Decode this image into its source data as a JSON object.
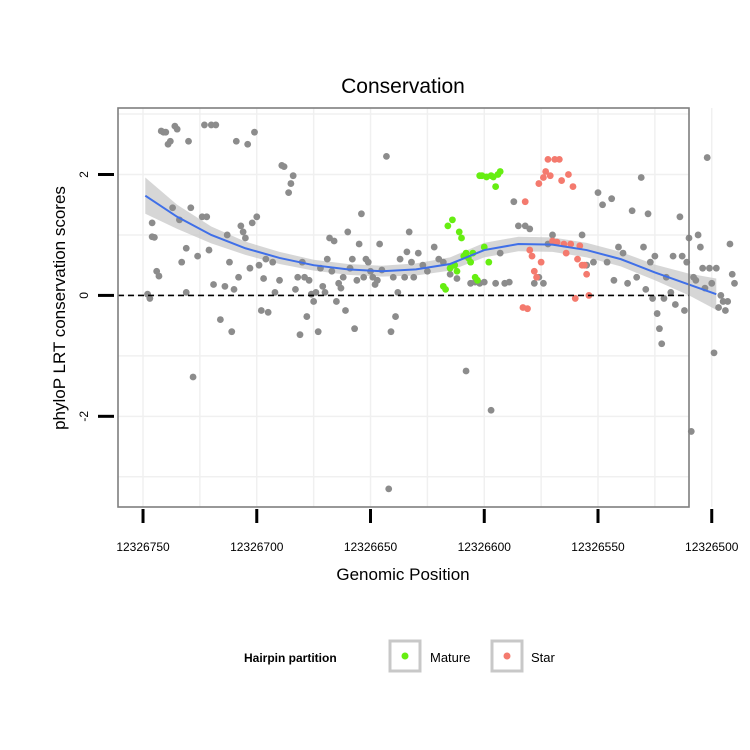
{
  "chart_data": {
    "type": "scatter",
    "title": "Conservation",
    "xlabel": "Genomic Position",
    "ylabel": "phyloP LRT conservation scores",
    "xlim": [
      12326761,
      12326510
    ],
    "ylim": [
      -3.5,
      3.1
    ],
    "x_reversed": true,
    "x_ticks": [
      12326750,
      12326700,
      12326650,
      12326600,
      12326550,
      12326500
    ],
    "x_tick_labels": [
      "12326750",
      "12326700",
      "12326650",
      "12326600",
      "12326550",
      "12326500"
    ],
    "y_ticks": [
      -2,
      0,
      2
    ],
    "y_tick_labels": [
      "-2",
      "0",
      "2"
    ],
    "reference_line": {
      "y": 0,
      "style": "dashed"
    },
    "colors": {
      "other": "#8c8c8c",
      "Mature": "#66ee11",
      "Star": "#f47a6e",
      "smooth": "#3f6fe8",
      "band": "#c8c8c8"
    },
    "legend": {
      "title": "Hairpin partition",
      "entries": [
        "Mature",
        "Star"
      ],
      "position": "bottom"
    },
    "smooth": {
      "x": [
        12326749,
        12326735,
        12326720,
        12326705,
        12326690,
        12326675,
        12326660,
        12326645,
        12326630,
        12326615,
        12326600,
        12326585,
        12326570,
        12326555,
        12326540,
        12326525,
        12326510,
        12326498
      ],
      "y": [
        1.65,
        1.3,
        1.0,
        0.78,
        0.62,
        0.5,
        0.43,
        0.4,
        0.43,
        0.52,
        0.75,
        0.85,
        0.84,
        0.75,
        0.6,
        0.38,
        0.18,
        0.02
      ],
      "band_width": [
        0.3,
        0.2,
        0.14,
        0.11,
        0.1,
        0.09,
        0.09,
        0.09,
        0.1,
        0.11,
        0.12,
        0.12,
        0.12,
        0.12,
        0.12,
        0.13,
        0.18,
        0.26
      ]
    },
    "series": [
      {
        "name": "other",
        "points": [
          [
            12326748,
            0.02
          ],
          [
            12326747,
            -0.05
          ],
          [
            12326746,
            1.2
          ],
          [
            12326746,
            0.97
          ],
          [
            12326745,
            0.96
          ],
          [
            12326744,
            0.4
          ],
          [
            12326743,
            0.32
          ],
          [
            12326742,
            2.72
          ],
          [
            12326741,
            2.7
          ],
          [
            12326740,
            2.7
          ],
          [
            12326739,
            2.5
          ],
          [
            12326738,
            2.55
          ],
          [
            12326737,
            1.45
          ],
          [
            12326736,
            2.8
          ],
          [
            12326735,
            2.75
          ],
          [
            12326734,
            1.25
          ],
          [
            12326733,
            0.55
          ],
          [
            12326731,
            0.78
          ],
          [
            12326731,
            0.05
          ],
          [
            12326730,
            2.55
          ],
          [
            12326729,
            1.45
          ],
          [
            12326728,
            -1.35
          ],
          [
            12326726,
            0.65
          ],
          [
            12326724,
            1.3
          ],
          [
            12326723,
            2.82
          ],
          [
            12326722,
            1.3
          ],
          [
            12326721,
            0.75
          ],
          [
            12326720,
            2.82
          ],
          [
            12326719,
            0.18
          ],
          [
            12326718,
            2.82
          ],
          [
            12326716,
            -0.4
          ],
          [
            12326714,
            0.15
          ],
          [
            12326713,
            1.0
          ],
          [
            12326712,
            0.55
          ],
          [
            12326711,
            -0.6
          ],
          [
            12326710,
            0.1
          ],
          [
            12326709,
            2.55
          ],
          [
            12326708,
            0.3
          ],
          [
            12326707,
            1.15
          ],
          [
            12326706,
            1.05
          ],
          [
            12326705,
            0.95
          ],
          [
            12326704,
            2.5
          ],
          [
            12326703,
            0.45
          ],
          [
            12326702,
            1.2
          ],
          [
            12326701,
            2.7
          ],
          [
            12326700,
            1.3
          ],
          [
            12326699,
            0.5
          ],
          [
            12326698,
            -0.25
          ],
          [
            12326697,
            0.28
          ],
          [
            12326696,
            0.6
          ],
          [
            12326695,
            -0.28
          ],
          [
            12326693,
            0.55
          ],
          [
            12326692,
            0.05
          ],
          [
            12326690,
            0.25
          ],
          [
            12326689,
            2.15
          ],
          [
            12326688,
            2.13
          ],
          [
            12326686,
            1.7
          ],
          [
            12326685,
            1.85
          ],
          [
            12326684,
            1.98
          ],
          [
            12326683,
            0.1
          ],
          [
            12326682,
            0.3
          ],
          [
            12326681,
            -0.65
          ],
          [
            12326680,
            0.55
          ],
          [
            12326679,
            0.3
          ],
          [
            12326678,
            -0.35
          ],
          [
            12326677,
            0.25
          ],
          [
            12326676,
            0.02
          ],
          [
            12326675,
            -0.1
          ],
          [
            12326674,
            0.05
          ],
          [
            12326673,
            -0.6
          ],
          [
            12326672,
            0.45
          ],
          [
            12326671,
            0.15
          ],
          [
            12326670,
            0.05
          ],
          [
            12326669,
            0.6
          ],
          [
            12326668,
            0.95
          ],
          [
            12326667,
            0.4
          ],
          [
            12326666,
            0.9
          ],
          [
            12326665,
            -0.1
          ],
          [
            12326664,
            0.2
          ],
          [
            12326663,
            0.12
          ],
          [
            12326662,
            0.3
          ],
          [
            12326661,
            -0.25
          ],
          [
            12326660,
            1.05
          ],
          [
            12326659,
            0.45
          ],
          [
            12326658,
            0.6
          ],
          [
            12326657,
            -0.55
          ],
          [
            12326656,
            0.25
          ],
          [
            12326655,
            0.85
          ],
          [
            12326654,
            1.35
          ],
          [
            12326653,
            0.3
          ],
          [
            12326652,
            0.6
          ],
          [
            12326651,
            0.55
          ],
          [
            12326650,
            0.4
          ],
          [
            12326649,
            0.3
          ],
          [
            12326648,
            0.18
          ],
          [
            12326647,
            0.25
          ],
          [
            12326646,
            0.85
          ],
          [
            12326645,
            0.42
          ],
          [
            12326643,
            2.3
          ],
          [
            12326642,
            -3.2
          ],
          [
            12326641,
            -0.6
          ],
          [
            12326640,
            0.3
          ],
          [
            12326639,
            -0.35
          ],
          [
            12326638,
            0.05
          ],
          [
            12326637,
            0.6
          ],
          [
            12326635,
            0.3
          ],
          [
            12326634,
            0.72
          ],
          [
            12326633,
            1.05
          ],
          [
            12326632,
            0.55
          ],
          [
            12326631,
            0.3
          ],
          [
            12326629,
            0.7
          ],
          [
            12326627,
            0.5
          ],
          [
            12326625,
            0.4
          ],
          [
            12326622,
            0.8
          ],
          [
            12326620,
            0.6
          ],
          [
            12326618,
            0.55
          ],
          [
            12326615,
            0.35
          ],
          [
            12326612,
            0.28
          ],
          [
            12326608,
            -1.25
          ],
          [
            12326606,
            0.2
          ],
          [
            12326604,
            0.22
          ],
          [
            12326602,
            0.2
          ],
          [
            12326600,
            0.22
          ],
          [
            12326597,
            -1.9
          ],
          [
            12326595,
            0.2
          ],
          [
            12326593,
            0.7
          ],
          [
            12326591,
            0.2
          ],
          [
            12326589,
            0.22
          ],
          [
            12326587,
            1.55
          ],
          [
            12326585,
            1.15
          ],
          [
            12326582,
            1.15
          ],
          [
            12326580,
            1.1
          ],
          [
            12326578,
            0.2
          ],
          [
            12326576,
            0.3
          ],
          [
            12326574,
            0.2
          ],
          [
            12326572,
            0.85
          ],
          [
            12326570,
            1.0
          ],
          [
            12326557,
            1.0
          ],
          [
            12326555,
            0.5
          ],
          [
            12326552,
            0.55
          ],
          [
            12326550,
            1.7
          ],
          [
            12326548,
            1.5
          ],
          [
            12326546,
            0.55
          ],
          [
            12326544,
            1.6
          ],
          [
            12326543,
            0.25
          ],
          [
            12326541,
            0.8
          ],
          [
            12326539,
            0.7
          ],
          [
            12326537,
            0.2
          ],
          [
            12326535,
            1.4
          ],
          [
            12326533,
            0.3
          ],
          [
            12326531,
            1.95
          ],
          [
            12326530,
            0.8
          ],
          [
            12326529,
            0.1
          ],
          [
            12326528,
            1.35
          ],
          [
            12326527,
            0.55
          ],
          [
            12326526,
            -0.05
          ],
          [
            12326525,
            0.65
          ],
          [
            12326524,
            -0.3
          ],
          [
            12326523,
            -0.55
          ],
          [
            12326522,
            -0.8
          ],
          [
            12326521,
            -0.05
          ],
          [
            12326520,
            0.3
          ],
          [
            12326518,
            0.05
          ],
          [
            12326517,
            0.65
          ],
          [
            12326516,
            -0.15
          ],
          [
            12326514,
            1.3
          ],
          [
            12326513,
            0.65
          ],
          [
            12326512,
            -0.25
          ],
          [
            12326511,
            0.55
          ],
          [
            12326510,
            0.95
          ],
          [
            12326509,
            -2.25
          ],
          [
            12326508,
            0.3
          ],
          [
            12326507,
            0.25
          ],
          [
            12326506,
            1.0
          ],
          [
            12326505,
            0.8
          ],
          [
            12326504,
            0.45
          ],
          [
            12326503,
            0.12
          ],
          [
            12326502,
            2.28
          ],
          [
            12326501,
            0.45
          ],
          [
            12326500,
            0.2
          ],
          [
            12326499,
            -0.95
          ],
          [
            12326498,
            0.45
          ],
          [
            12326497,
            -0.2
          ],
          [
            12326496,
            0.0
          ],
          [
            12326495,
            -0.1
          ],
          [
            12326494,
            -0.25
          ],
          [
            12326493,
            -0.1
          ],
          [
            12326492,
            0.85
          ],
          [
            12326491,
            0.35
          ],
          [
            12326490,
            0.2
          ]
        ]
      },
      {
        "name": "Mature",
        "points": [
          [
            12326618,
            0.15
          ],
          [
            12326617,
            0.1
          ],
          [
            12326616,
            1.15
          ],
          [
            12326615,
            0.45
          ],
          [
            12326614,
            1.25
          ],
          [
            12326613,
            0.5
          ],
          [
            12326612,
            0.4
          ],
          [
            12326611,
            1.05
          ],
          [
            12326610,
            0.95
          ],
          [
            12326609,
            0.65
          ],
          [
            12326608,
            0.7
          ],
          [
            12326607,
            0.62
          ],
          [
            12326606,
            0.55
          ],
          [
            12326605,
            0.7
          ],
          [
            12326604,
            0.3
          ],
          [
            12326603,
            0.25
          ],
          [
            12326602,
            1.98
          ],
          [
            12326601,
            1.98
          ],
          [
            12326600,
            0.8
          ],
          [
            12326599,
            1.96
          ],
          [
            12326598,
            0.55
          ],
          [
            12326597,
            1.98
          ],
          [
            12326596,
            1.96
          ],
          [
            12326595,
            1.8
          ],
          [
            12326594,
            2.0
          ],
          [
            12326593,
            2.05
          ]
        ]
      },
      {
        "name": "Star",
        "points": [
          [
            12326583,
            -0.2
          ],
          [
            12326582,
            1.55
          ],
          [
            12326581,
            -0.22
          ],
          [
            12326580,
            0.75
          ],
          [
            12326579,
            0.65
          ],
          [
            12326578,
            0.4
          ],
          [
            12326577,
            0.3
          ],
          [
            12326576,
            1.85
          ],
          [
            12326575,
            0.55
          ],
          [
            12326574,
            1.95
          ],
          [
            12326573,
            2.05
          ],
          [
            12326572,
            2.25
          ],
          [
            12326571,
            1.98
          ],
          [
            12326570,
            0.9
          ],
          [
            12326569,
            2.25
          ],
          [
            12326568,
            0.88
          ],
          [
            12326567,
            2.25
          ],
          [
            12326566,
            1.9
          ],
          [
            12326565,
            0.85
          ],
          [
            12326564,
            0.7
          ],
          [
            12326563,
            2.0
          ],
          [
            12326562,
            0.85
          ],
          [
            12326561,
            1.8
          ],
          [
            12326560,
            -0.05
          ],
          [
            12326559,
            0.6
          ],
          [
            12326558,
            0.82
          ],
          [
            12326557,
            0.5
          ],
          [
            12326556,
            0.5
          ],
          [
            12326555,
            0.35
          ],
          [
            12326554,
            0.0
          ]
        ]
      }
    ]
  }
}
